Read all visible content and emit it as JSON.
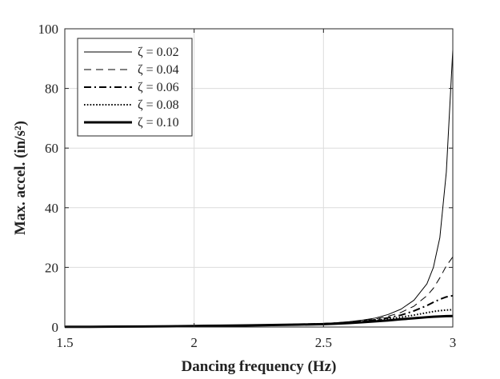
{
  "chart_data": {
    "type": "line",
    "title": "",
    "xlabel": "Dancing frequency (Hz)",
    "ylabel": "Max. accel. (in/s²)",
    "xlim": [
      1.5,
      3
    ],
    "ylim": [
      0,
      100
    ],
    "xticks": [
      1.5,
      2,
      2.5,
      3
    ],
    "xtick_labels": [
      "1.5",
      "2",
      "2.5",
      "3"
    ],
    "yticks": [
      0,
      20,
      40,
      60,
      80,
      100
    ],
    "ytick_labels": [
      "0",
      "20",
      "40",
      "60",
      "80",
      "100"
    ],
    "grid": true,
    "legend_position": "top-left",
    "x": [
      1.5,
      1.6,
      1.7,
      1.8,
      1.9,
      2.0,
      2.1,
      2.2,
      2.3,
      2.4,
      2.5,
      2.55,
      2.6,
      2.65,
      2.7,
      2.75,
      2.8,
      2.85,
      2.9,
      2.925,
      2.95,
      2.975,
      3.0
    ],
    "series": [
      {
        "name": "ζ = 0.02",
        "style": "solid",
        "width": "thin",
        "values": [
          0.05,
          0.08,
          0.12,
          0.18,
          0.25,
          0.35,
          0.45,
          0.55,
          0.7,
          0.9,
          1.2,
          1.45,
          1.8,
          2.3,
          3.0,
          4.2,
          6.0,
          9.0,
          14.5,
          20.0,
          30.0,
          52.0,
          93.0
        ]
      },
      {
        "name": "ζ = 0.04",
        "style": "dashed",
        "width": "thin",
        "values": [
          0.05,
          0.08,
          0.12,
          0.18,
          0.25,
          0.35,
          0.45,
          0.55,
          0.7,
          0.9,
          1.15,
          1.4,
          1.7,
          2.1,
          2.7,
          3.6,
          4.9,
          7.0,
          10.5,
          13.0,
          16.5,
          20.5,
          23.5
        ]
      },
      {
        "name": "ζ = 0.06",
        "style": "dashdot",
        "width": "medium",
        "values": [
          0.05,
          0.08,
          0.12,
          0.18,
          0.25,
          0.35,
          0.45,
          0.55,
          0.7,
          0.88,
          1.1,
          1.3,
          1.6,
          1.95,
          2.4,
          3.1,
          4.0,
          5.4,
          7.2,
          8.3,
          9.3,
          10.1,
          10.5
        ]
      },
      {
        "name": "ζ = 0.08",
        "style": "dotted",
        "width": "medium",
        "values": [
          0.05,
          0.08,
          0.12,
          0.18,
          0.25,
          0.35,
          0.45,
          0.55,
          0.68,
          0.85,
          1.05,
          1.25,
          1.5,
          1.8,
          2.2,
          2.7,
          3.3,
          4.0,
          4.8,
          5.2,
          5.5,
          5.7,
          5.8
        ]
      },
      {
        "name": "ζ = 0.10",
        "style": "solid",
        "width": "thick",
        "values": [
          0.05,
          0.08,
          0.12,
          0.18,
          0.25,
          0.35,
          0.45,
          0.55,
          0.66,
          0.8,
          0.98,
          1.15,
          1.35,
          1.6,
          1.9,
          2.2,
          2.6,
          2.95,
          3.3,
          3.45,
          3.55,
          3.65,
          3.7
        ]
      }
    ]
  }
}
